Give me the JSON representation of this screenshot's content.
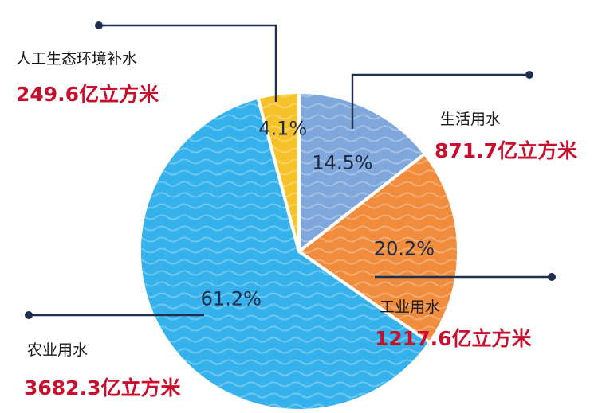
{
  "chart_data": {
    "type": "pie",
    "title": "",
    "unit": "亿立方米",
    "slices": [
      {
        "name": "生活用水",
        "value": 871.7,
        "value_label": "871.7亿立方米",
        "percent": 14.5,
        "percent_label": "14.5%",
        "color": "#7fa7dc"
      },
      {
        "name": "工业用水",
        "value": 1217.6,
        "value_label": "1217.6亿立方米",
        "percent": 20.2,
        "percent_label": "20.2%",
        "color": "#f08c3c"
      },
      {
        "name": "农业用水",
        "value": 3682.3,
        "value_label": "3682.3亿立方米",
        "percent": 61.2,
        "percent_label": "61.2%",
        "color": "#35b2ec"
      },
      {
        "name": "人工生态环境补水",
        "value": 249.6,
        "value_label": "249.6亿立方米",
        "percent": 4.1,
        "percent_label": "4.1%",
        "color": "#f6c22a"
      }
    ],
    "start_angle_deg": 0,
    "direction": "clockwise",
    "legend": "none"
  }
}
